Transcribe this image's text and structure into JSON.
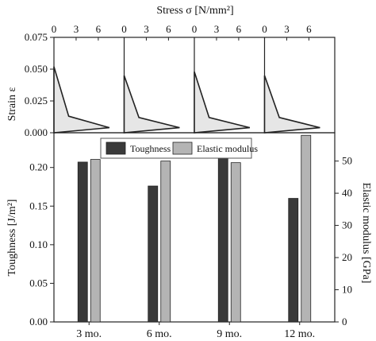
{
  "chart_data": [
    {
      "type": "area",
      "title": "",
      "top_axis_label": "Stress σ [N/mm²]",
      "ylabel": "Strain ε",
      "ylim": [
        0,
        0.075
      ],
      "yticks": [
        0,
        0.025,
        0.05,
        0.075
      ],
      "ytick_labels": [
        "0.000",
        "0.025",
        "0.050",
        "0.075"
      ],
      "xlim": [
        0,
        9.5
      ],
      "xticks": [
        0,
        3,
        6
      ],
      "xtick_labels": [
        "0",
        "3",
        "6"
      ],
      "panels": [
        {
          "label": "3 mo.",
          "stress": [
            0,
            2.0,
            7.5,
            0
          ],
          "strain": [
            0.052,
            0.013,
            0.004,
            0
          ]
        },
        {
          "label": "6 mo.",
          "stress": [
            0,
            2.0,
            7.5,
            0
          ],
          "strain": [
            0.045,
            0.012,
            0.004,
            0
          ]
        },
        {
          "label": "9 mo.",
          "stress": [
            0,
            2.0,
            7.5,
            0
          ],
          "strain": [
            0.048,
            0.012,
            0.004,
            0
          ]
        },
        {
          "label": "12 mo.",
          "stress": [
            0,
            2.0,
            7.5,
            0
          ],
          "strain": [
            0.045,
            0.012,
            0.004,
            0
          ]
        }
      ]
    },
    {
      "type": "bar",
      "categories": [
        "3 mo.",
        "6 mo.",
        "9 mo.",
        "12 mo."
      ],
      "series": [
        {
          "name": "Toughness",
          "axis": "left",
          "color": "#3a3a3a",
          "values": [
            0.207,
            0.176,
            0.214,
            0.16
          ]
        },
        {
          "name": "Elastic modulus",
          "axis": "right",
          "color": "#b4b4b4",
          "values": [
            50.5,
            50.0,
            49.5,
            58.0
          ]
        }
      ],
      "ylabel": "Toughness [J/m²]",
      "ylim": [
        0,
        0.245
      ],
      "yticks": [
        0,
        0.05,
        0.1,
        0.15,
        0.2
      ],
      "ytick_labels": [
        "0.00",
        "0.05",
        "0.10",
        "0.15",
        "0.20"
      ],
      "y2label": "Elastic modulus [GPa]",
      "y2lim": [
        0,
        58.8
      ],
      "y2ticks": [
        0,
        10,
        20,
        30,
        40,
        50
      ],
      "y2tick_labels": [
        "0",
        "10",
        "20",
        "30",
        "40",
        "50"
      ],
      "legend": "top-center",
      "grid": false
    }
  ]
}
